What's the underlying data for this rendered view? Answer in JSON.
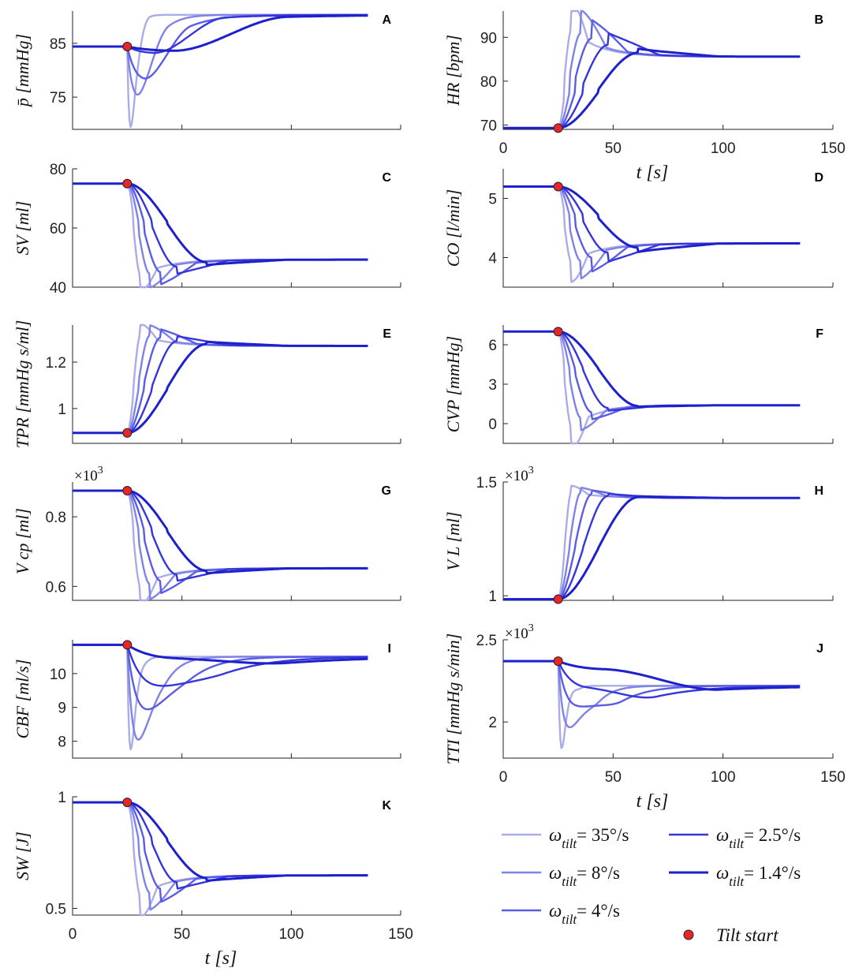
{
  "figure": {
    "series": [
      {
        "name": "ω tilt = 35°/s",
        "prefix": "ω",
        "sub": "tilt",
        "value": "= 35°/s",
        "color": "#a9ace8",
        "tau": 1.6
      },
      {
        "name": "ω tilt = 8°/s",
        "prefix": "ω",
        "sub": "tilt",
        "value": "= 8°/s",
        "color": "#7f82e6",
        "tau": 5
      },
      {
        "name": "ω tilt = 4°/s",
        "prefix": "ω",
        "sub": "tilt",
        "value": "= 4°/s",
        "color": "#5a5de4",
        "tau": 9
      },
      {
        "name": "ω tilt = 2.5°/s",
        "prefix": "ω",
        "sub": "tilt",
        "value": "= 2.5°/s",
        "color": "#3436da",
        "tau": 15
      },
      {
        "name": "ω tilt = 1.4°/s",
        "prefix": "ω",
        "sub": "tilt",
        "value": "= 1.4°/s",
        "color": "#1e20cc",
        "tau": 26
      }
    ],
    "tilt_marker": {
      "label": "Tilt start",
      "color": "#e8262a",
      "t": 25
    },
    "xlabel": "t [s]",
    "xticks": [
      0,
      50,
      100,
      150
    ]
  },
  "chart_data": [
    {
      "type": "line",
      "panel": "A",
      "ylabel": "p̄ [mmHg]",
      "ylim": [
        69,
        91
      ],
      "yticks": [
        75,
        85
      ],
      "xlim": [
        0,
        150
      ],
      "t_start": 25,
      "t_end": 135,
      "baseline": 84.4,
      "final": 90.3,
      "dip_depth": [
        15,
        9,
        6,
        1.2,
        0.8
      ],
      "overshoot": 0,
      "x_tick_labels": false
    },
    {
      "type": "line",
      "panel": "B",
      "ylabel": "HR [bpm]",
      "ylim": [
        69,
        96
      ],
      "yticks": [
        70,
        80,
        90
      ],
      "xlim": [
        0,
        150
      ],
      "t_start": 25,
      "t_end": 135,
      "baseline": 69.3,
      "final": 85.6,
      "dip_depth": 0,
      "overshoot": [
        10.5,
        9,
        7,
        4.5,
        1.5
      ],
      "x_tick_labels": true
    },
    {
      "type": "line",
      "panel": "C",
      "ylabel": "SV [ml]",
      "ylim": [
        40,
        80
      ],
      "yticks": [
        40,
        60,
        80
      ],
      "xlim": [
        0,
        150
      ],
      "t_start": 25,
      "t_end": 135,
      "baseline": 75.0,
      "final": 49.3,
      "dip_depth": 0,
      "overshoot": [
        9,
        8,
        7,
        4,
        1.5
      ],
      "x_tick_labels": false
    },
    {
      "type": "line",
      "panel": "D",
      "ylabel": "CO [l/min]",
      "ylim": [
        3.5,
        5.5
      ],
      "yticks": [
        4,
        5
      ],
      "xlim": [
        0,
        150
      ],
      "t_start": 25,
      "t_end": 135,
      "baseline": 5.2,
      "final": 4.24,
      "dip_depth": 0,
      "overshoot": [
        0.55,
        0.5,
        0.4,
        0.26,
        0.12
      ],
      "x_tick_labels": false
    },
    {
      "type": "line",
      "panel": "E",
      "ylabel": "TPR [mmHg s/ml]",
      "ylim": [
        0.85,
        1.36
      ],
      "yticks": [
        1,
        1.2
      ],
      "xlim": [
        0,
        150
      ],
      "t_start": 25,
      "t_end": 135,
      "baseline": 0.895,
      "final": 1.27,
      "dip_depth": 0,
      "overshoot": [
        0.08,
        0.075,
        0.06,
        0.035,
        0.015
      ],
      "x_tick_labels": false
    },
    {
      "type": "line",
      "panel": "F",
      "ylabel": "CVP [mmHg]",
      "ylim": [
        -1.5,
        7.5
      ],
      "yticks": [
        0,
        3,
        6
      ],
      "xlim": [
        0,
        150
      ],
      "t_start": 25,
      "t_end": 135,
      "baseline": 7.0,
      "final": 1.4,
      "dip_depth": 0,
      "overshoot": [
        2.8,
        1.6,
        0.9,
        0.35,
        0.1
      ],
      "x_tick_labels": false
    },
    {
      "type": "line",
      "panel": "G",
      "ylabel": "V cp [ml]",
      "multiplier": "×10",
      "multiplier_exp": "3",
      "ylim": [
        0.56,
        0.9
      ],
      "yticks": [
        0.6,
        0.8
      ],
      "xlim": [
        0,
        150
      ],
      "t_start": 25,
      "t_end": 135,
      "baseline": 0.875,
      "final": 0.652,
      "dip_depth": 0,
      "overshoot": [
        0.09,
        0.075,
        0.06,
        0.03,
        0.012
      ],
      "x_tick_labels": false
    },
    {
      "type": "line",
      "panel": "H",
      "ylabel": "V L [ml]",
      "multiplier": "×10",
      "multiplier_exp": "3",
      "ylim": [
        0.98,
        1.5
      ],
      "yticks": [
        1,
        1.5
      ],
      "xlim": [
        0,
        150
      ],
      "t_start": 25,
      "t_end": 135,
      "baseline": 0.985,
      "final": 1.43,
      "dip_depth": 0,
      "overshoot": [
        0.045,
        0.038,
        0.028,
        0.015,
        0.006
      ],
      "x_tick_labels": false
    },
    {
      "type": "line",
      "panel": "I",
      "ylabel": "CBF [ml/s]",
      "ylim": [
        7.5,
        11
      ],
      "yticks": [
        8,
        9,
        10
      ],
      "xlim": [
        0,
        150
      ],
      "t_start": 25,
      "t_end": 135,
      "baseline": 10.85,
      "final": 10.5,
      "dip_depth": [
        3.1,
        2.8,
        1.9,
        1.2,
        0.4
      ],
      "overshoot": 0,
      "x_tick_labels": false
    },
    {
      "type": "line",
      "panel": "J",
      "ylabel": "TTI [mmHg s/min]",
      "multiplier": "×10",
      "multiplier_exp": "3",
      "ylim": [
        1.78,
        2.5
      ],
      "yticks": [
        2,
        2.5
      ],
      "xlim": [
        0,
        150
      ],
      "t_start": 25,
      "t_end": 135,
      "baseline": 2.37,
      "final": 2.22,
      "dip_depth": [
        0.53,
        0.4,
        0.27,
        0.16,
        0.05
      ],
      "overshoot": 0,
      "x_tick_labels": true
    },
    {
      "type": "line",
      "panel": "K",
      "ylabel": "SW [J]",
      "ylim": [
        0.47,
        1.0
      ],
      "yticks": [
        0.5,
        1
      ],
      "xlim": [
        0,
        150
      ],
      "t_start": 25,
      "t_end": 135,
      "baseline": 0.975,
      "final": 0.648,
      "dip_depth": 0,
      "overshoot": [
        0.16,
        0.13,
        0.1,
        0.05,
        0.02
      ],
      "x_tick_labels": true
    }
  ]
}
